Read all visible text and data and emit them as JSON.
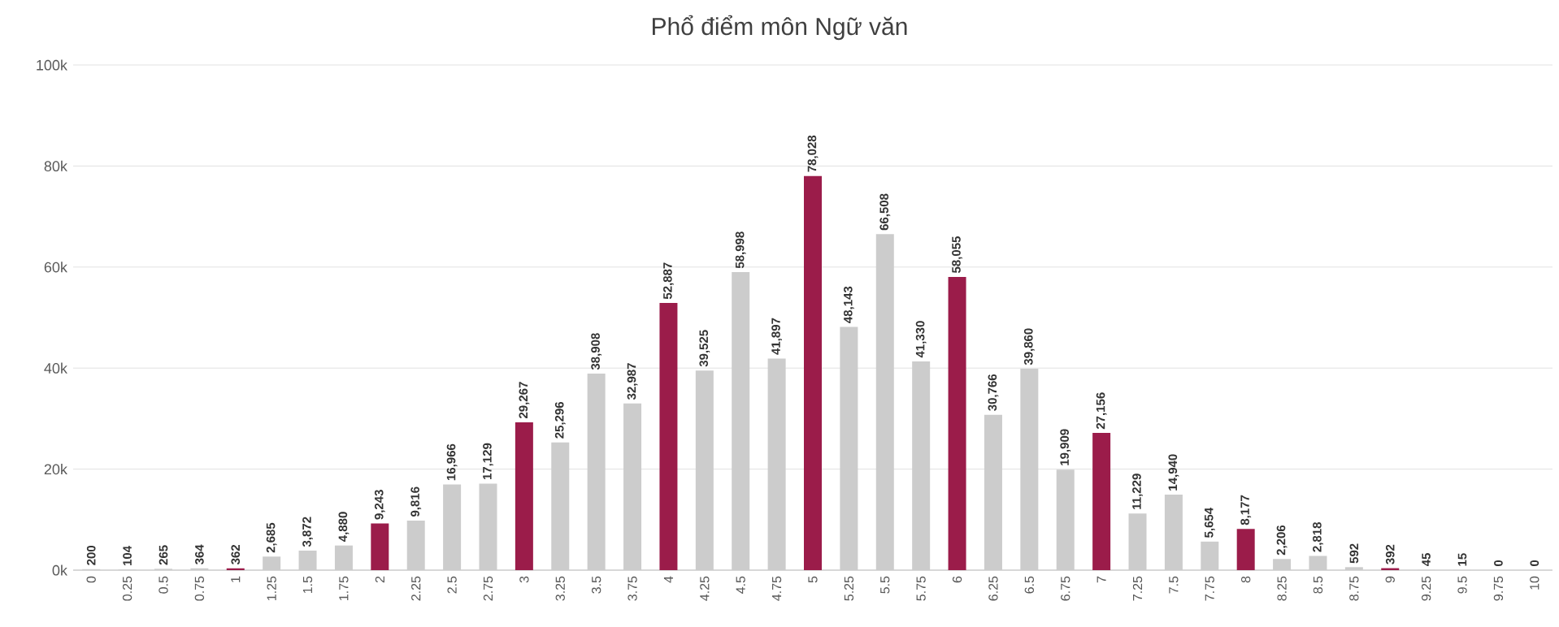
{
  "chart_data": {
    "type": "bar",
    "title": "Phổ điểm môn Ngữ văn",
    "categories": [
      "0",
      "0.25",
      "0.5",
      "0.75",
      "1",
      "1.25",
      "1.5",
      "1.75",
      "2",
      "2.25",
      "2.5",
      "2.75",
      "3",
      "3.25",
      "3.5",
      "3.75",
      "4",
      "4.25",
      "4.5",
      "4.75",
      "5",
      "5.25",
      "5.5",
      "5.75",
      "6",
      "6.25",
      "6.5",
      "6.75",
      "7",
      "7.25",
      "7.5",
      "7.75",
      "8",
      "8.25",
      "8.5",
      "8.75",
      "9",
      "9.25",
      "9.5",
      "9.75",
      "10"
    ],
    "values": [
      200,
      104,
      265,
      364,
      362,
      2685,
      3872,
      4880,
      9243,
      9816,
      16966,
      17129,
      29267,
      25296,
      38908,
      32987,
      52887,
      39525,
      58998,
      41897,
      78028,
      48143,
      66508,
      41330,
      58055,
      30766,
      39860,
      19909,
      27156,
      11229,
      14940,
      5654,
      8177,
      2206,
      2818,
      592,
      392,
      45,
      15,
      0,
      0
    ],
    "value_labels": [
      "200",
      "104",
      "265",
      "364",
      "362",
      "2,685",
      "3,872",
      "4,880",
      "9,243",
      "9,816",
      "16,966",
      "17,129",
      "29,267",
      "25,296",
      "38,908",
      "32,987",
      "52,887",
      "39,525",
      "58,998",
      "41,897",
      "78,028",
      "48,143",
      "66,508",
      "41,330",
      "58,055",
      "30,766",
      "39,860",
      "19,909",
      "27,156",
      "11,229",
      "14,940",
      "5,654",
      "8,177",
      "2,206",
      "2,818",
      "592",
      "392",
      "45",
      "15",
      "0",
      "0"
    ],
    "colors": [
      "#cccccc",
      "#cccccc",
      "#cccccc",
      "#cccccc",
      "#9b1c4a",
      "#cccccc",
      "#cccccc",
      "#cccccc",
      "#9b1c4a",
      "#cccccc",
      "#cccccc",
      "#cccccc",
      "#9b1c4a",
      "#cccccc",
      "#cccccc",
      "#cccccc",
      "#9b1c4a",
      "#cccccc",
      "#cccccc",
      "#cccccc",
      "#9b1c4a",
      "#cccccc",
      "#cccccc",
      "#cccccc",
      "#9b1c4a",
      "#cccccc",
      "#cccccc",
      "#cccccc",
      "#9b1c4a",
      "#cccccc",
      "#cccccc",
      "#cccccc",
      "#9b1c4a",
      "#cccccc",
      "#cccccc",
      "#cccccc",
      "#9b1c4a",
      "#cccccc",
      "#cccccc",
      "#cccccc",
      "#9b1c4a"
    ],
    "ylim": [
      0,
      100000
    ],
    "yticks": [
      {
        "value": 0,
        "label": "0k"
      },
      {
        "value": 20000,
        "label": "20k"
      },
      {
        "value": 40000,
        "label": "40k"
      },
      {
        "value": 60000,
        "label": "60k"
      },
      {
        "value": 80000,
        "label": "80k"
      },
      {
        "value": 100000,
        "label": "100k"
      }
    ],
    "grid": "y"
  }
}
